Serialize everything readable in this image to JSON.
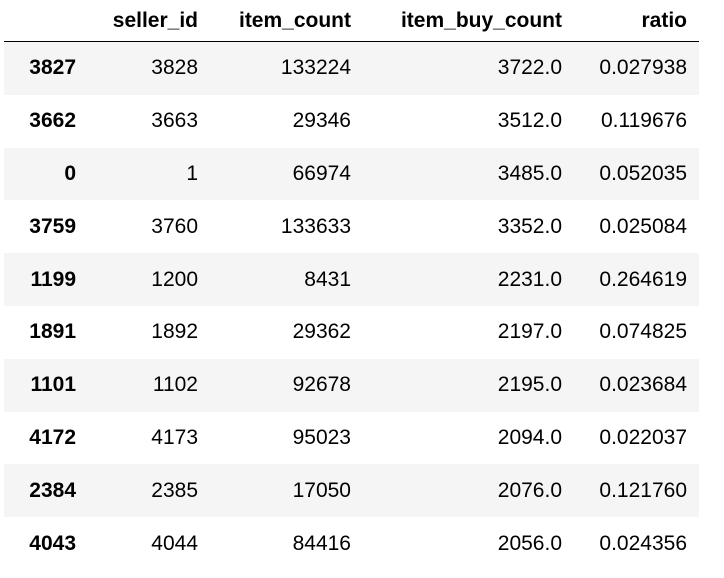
{
  "table": {
    "columns": [
      "",
      "seller_id",
      "item_count",
      "item_buy_count",
      "ratio"
    ],
    "rows": [
      {
        "index": "3827",
        "seller_id": "3828",
        "item_count": "133224",
        "item_buy_count": "3722.0",
        "ratio": "0.027938"
      },
      {
        "index": "3662",
        "seller_id": "3663",
        "item_count": "29346",
        "item_buy_count": "3512.0",
        "ratio": "0.119676"
      },
      {
        "index": "0",
        "seller_id": "1",
        "item_count": "66974",
        "item_buy_count": "3485.0",
        "ratio": "0.052035"
      },
      {
        "index": "3759",
        "seller_id": "3760",
        "item_count": "133633",
        "item_buy_count": "3352.0",
        "ratio": "0.025084"
      },
      {
        "index": "1199",
        "seller_id": "1200",
        "item_count": "8431",
        "item_buy_count": "2231.0",
        "ratio": "0.264619"
      },
      {
        "index": "1891",
        "seller_id": "1892",
        "item_count": "29362",
        "item_buy_count": "2197.0",
        "ratio": "0.074825"
      },
      {
        "index": "1101",
        "seller_id": "1102",
        "item_count": "92678",
        "item_buy_count": "2195.0",
        "ratio": "0.023684"
      },
      {
        "index": "4172",
        "seller_id": "4173",
        "item_count": "95023",
        "item_buy_count": "2094.0",
        "ratio": "0.022037"
      },
      {
        "index": "2384",
        "seller_id": "2385",
        "item_count": "17050",
        "item_buy_count": "2076.0",
        "ratio": "0.121760"
      },
      {
        "index": "4043",
        "seller_id": "4044",
        "item_count": "84416",
        "item_buy_count": "2056.0",
        "ratio": "0.024356"
      }
    ]
  },
  "colors": {
    "stripe": "#f5f5f5",
    "background": "#ffffff",
    "text": "#000000",
    "header_rule": "#000000"
  }
}
